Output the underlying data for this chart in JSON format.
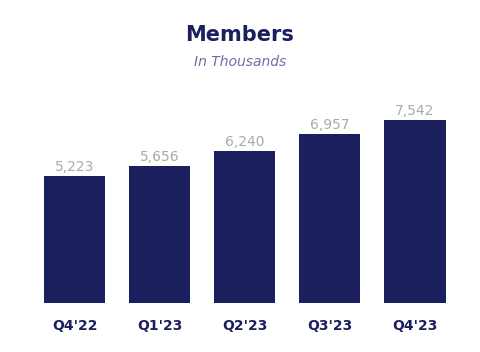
{
  "title": "Members",
  "subtitle": "In Thousands",
  "categories": [
    "Q4'22",
    "Q1'23",
    "Q2'23",
    "Q3'23",
    "Q4'23"
  ],
  "values": [
    5223,
    5656,
    6240,
    6957,
    7542
  ],
  "labels": [
    "5,223",
    "5,656",
    "6,240",
    "6,957",
    "7,542"
  ],
  "bar_color": "#1b1f5e",
  "background_color": "#ffffff",
  "title_color": "#1b1f5e",
  "subtitle_color": "#6b6fa8",
  "label_color": "#aaaaaa",
  "xlabel_color": "#1b1f5e",
  "title_fontsize": 15,
  "subtitle_fontsize": 10,
  "label_fontsize": 10,
  "xlabel_fontsize": 10,
  "bar_width": 0.72,
  "ylim": [
    0,
    9000
  ]
}
